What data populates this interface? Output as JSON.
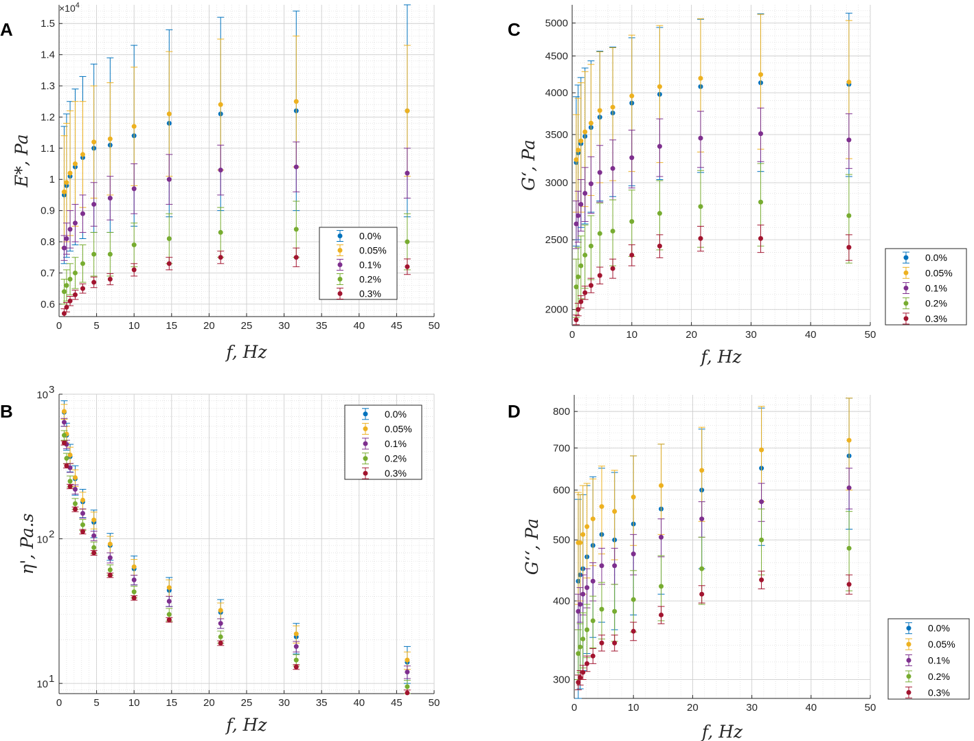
{
  "figure": {
    "series_names": [
      "0.0%",
      "0.05%",
      "0.1%",
      "0.2%",
      "0.3%"
    ],
    "series_colors": [
      "#0072BD",
      "#EDB120",
      "#7E2F8E",
      "#77AC30",
      "#A2142F"
    ]
  },
  "chart_data": [
    {
      "id": "A",
      "panel_label": "A",
      "type": "scatter",
      "yscale": "linear",
      "xlabel": "f, Hz",
      "ylabel": "E*, Pa",
      "exponent_label": "×10^4",
      "xlim": [
        0,
        50
      ],
      "ylim": [
        0.56,
        1.56
      ],
      "xticks": [
        0,
        5,
        10,
        15,
        20,
        25,
        30,
        35,
        40,
        45,
        50
      ],
      "xtick_labels": [
        "0",
        "5",
        "10",
        "15",
        "20",
        "25",
        "30",
        "35",
        "40",
        "45",
        "50"
      ],
      "yticks": [
        0.6,
        0.7,
        0.8,
        0.9,
        1.0,
        1.1,
        1.2,
        1.3,
        1.4,
        1.5
      ],
      "ytick_labels": [
        "0.6",
        "0.7",
        "0.8",
        "0.9",
        "1",
        "1.1",
        "1.2",
        "1.3",
        "1.4",
        "1.5"
      ],
      "legend_position": "lower-right",
      "x": [
        0.68,
        1.0,
        1.47,
        2.15,
        3.16,
        4.64,
        6.81,
        10.0,
        14.68,
        21.54,
        31.62,
        46.42
      ],
      "series": [
        {
          "name": "0.0%",
          "values": [
            0.95,
            0.98,
            1.01,
            1.04,
            1.07,
            1.1,
            1.11,
            1.14,
            1.18,
            1.21,
            1.22,
            1.22
          ],
          "err": [
            0.22,
            0.23,
            0.24,
            0.25,
            0.26,
            0.27,
            0.28,
            0.29,
            0.3,
            0.31,
            0.32,
            0.34
          ]
        },
        {
          "name": "0.05%",
          "values": [
            0.96,
            0.99,
            1.02,
            1.05,
            1.08,
            1.12,
            1.13,
            1.17,
            1.21,
            1.24,
            1.25,
            1.22
          ],
          "err": [
            0.18,
            0.19,
            0.2,
            0.2,
            0.17,
            0.18,
            0.18,
            0.19,
            0.2,
            0.21,
            0.21,
            0.21
          ]
        },
        {
          "name": "0.1%",
          "values": [
            0.78,
            0.81,
            0.84,
            0.86,
            0.89,
            0.92,
            0.94,
            0.97,
            1.0,
            1.03,
            1.04,
            1.02
          ],
          "err": [
            0.04,
            0.05,
            0.06,
            0.06,
            0.06,
            0.07,
            0.07,
            0.08,
            0.08,
            0.08,
            0.08,
            0.08
          ]
        },
        {
          "name": "0.2%",
          "values": [
            0.64,
            0.66,
            0.68,
            0.7,
            0.73,
            0.76,
            0.76,
            0.79,
            0.81,
            0.83,
            0.84,
            0.8
          ],
          "err": [
            0.04,
            0.05,
            0.05,
            0.05,
            0.06,
            0.07,
            0.07,
            0.07,
            0.08,
            0.08,
            0.09,
            0.09
          ]
        },
        {
          "name": "0.3%",
          "values": [
            0.57,
            0.59,
            0.61,
            0.63,
            0.65,
            0.67,
            0.68,
            0.71,
            0.73,
            0.75,
            0.75,
            0.72
          ],
          "err": [
            0.015,
            0.015,
            0.015,
            0.015,
            0.015,
            0.017,
            0.018,
            0.02,
            0.02,
            0.02,
            0.03,
            0.025
          ]
        }
      ]
    },
    {
      "id": "B",
      "panel_label": "B",
      "type": "scatter",
      "yscale": "log",
      "xlabel": "f, Hz",
      "ylabel": "η', Pa.s",
      "xlim": [
        0,
        50
      ],
      "ylim": [
        8.5,
        1000
      ],
      "xticks": [
        0,
        5,
        10,
        15,
        20,
        25,
        30,
        35,
        40,
        45,
        50
      ],
      "xtick_labels": [
        "0",
        "5",
        "10",
        "15",
        "20",
        "25",
        "30",
        "35",
        "40",
        "45",
        "50"
      ],
      "yticks": [
        10,
        100,
        1000
      ],
      "ytick_labels": [
        "10",
        "10",
        "10"
      ],
      "ytick_exponents": [
        "1",
        "2",
        "3"
      ],
      "legend_position": "top-right",
      "x": [
        0.68,
        1.0,
        1.47,
        2.15,
        3.16,
        4.64,
        6.81,
        10.0,
        14.68,
        21.54,
        31.62,
        46.42
      ],
      "series": [
        {
          "name": "0.0%",
          "values": [
            750,
            520,
            370,
            260,
            180,
            130,
            90,
            62,
            44,
            31,
            21,
            14
          ],
          "err": [
            150,
            110,
            80,
            60,
            40,
            28,
            19,
            14,
            10,
            7,
            5,
            4
          ]
        },
        {
          "name": "0.05%",
          "values": [
            760,
            530,
            380,
            265,
            185,
            135,
            92,
            64,
            46,
            32,
            22,
            14.5
          ],
          "err": [
            90,
            70,
            50,
            35,
            25,
            18,
            12,
            8,
            6,
            4,
            3,
            2
          ]
        },
        {
          "name": "0.1%",
          "values": [
            640,
            450,
            310,
            220,
            150,
            105,
            74,
            52,
            37,
            26,
            18,
            12
          ],
          "err": [
            40,
            30,
            22,
            16,
            11,
            8,
            6,
            4,
            3,
            2,
            1.5,
            1.2
          ]
        },
        {
          "name": "0.2%",
          "values": [
            520,
            360,
            250,
            175,
            125,
            87,
            61,
            43,
            30,
            21,
            14.5,
            9.5
          ],
          "err": [
            40,
            30,
            22,
            15,
            11,
            8,
            5,
            4,
            3,
            2,
            1.3,
            1
          ]
        },
        {
          "name": "0.3%",
          "values": [
            460,
            320,
            230,
            160,
            112,
            80,
            56,
            39,
            27.5,
            19,
            13,
            8.6
          ],
          "err": [
            15,
            11,
            8,
            6,
            4,
            3,
            2,
            1.4,
            1,
            0.7,
            0.5,
            0.4
          ]
        }
      ]
    },
    {
      "id": "C",
      "panel_label": "C",
      "type": "scatter",
      "yscale": "log",
      "xlabel": "f, Hz",
      "ylabel": "G‘, Pa",
      "xlim": [
        0,
        50
      ],
      "ylim": [
        1900,
        5300
      ],
      "xticks": [
        0,
        10,
        20,
        30,
        40,
        50
      ],
      "xtick_labels": [
        "0",
        "10",
        "20",
        "30",
        "40",
        "50"
      ],
      "yticks": [
        2000,
        2500,
        3000,
        3500,
        4000,
        4500,
        5000
      ],
      "ytick_labels": [
        "2000",
        "2500",
        "3000",
        "3500",
        "4000",
        "4500",
        "5000"
      ],
      "legend_position": "right-outside",
      "x": [
        0.68,
        1.0,
        1.47,
        2.15,
        3.16,
        4.64,
        6.81,
        10.0,
        14.68,
        21.54,
        31.62,
        46.42
      ],
      "series": [
        {
          "name": "0.0%",
          "values": [
            3200,
            3300,
            3400,
            3480,
            3580,
            3700,
            3750,
            3870,
            3980,
            4080,
            4130,
            4110
          ],
          "err": [
            750,
            800,
            800,
            850,
            850,
            870,
            880,
            900,
            950,
            980,
            1020,
            1050
          ]
        },
        {
          "name": "0.05%",
          "values": [
            3230,
            3330,
            3430,
            3530,
            3630,
            3780,
            3820,
            3960,
            4080,
            4190,
            4240,
            4140
          ],
          "err": [
            500,
            600,
            700,
            750,
            750,
            780,
            800,
            850,
            880,
            880,
            900,
            900
          ]
        },
        {
          "name": "0.1%",
          "values": [
            2630,
            2700,
            2800,
            2900,
            2990,
            3100,
            3140,
            3250,
            3370,
            3460,
            3510,
            3440
          ],
          "err": [
            200,
            220,
            230,
            250,
            270,
            280,
            300,
            300,
            310,
            310,
            300,
            300
          ]
        },
        {
          "name": "0.2%",
          "values": [
            2150,
            2220,
            2300,
            2380,
            2450,
            2550,
            2570,
            2650,
            2720,
            2780,
            2820,
            2700
          ],
          "err": [
            200,
            220,
            230,
            240,
            250,
            260,
            270,
            280,
            300,
            340,
            370,
            380
          ]
        },
        {
          "name": "0.3%",
          "values": [
            1935,
            2000,
            2050,
            2110,
            2160,
            2230,
            2280,
            2380,
            2450,
            2510,
            2510,
            2440
          ],
          "err": [
            30,
            40,
            40,
            45,
            50,
            60,
            70,
            80,
            90,
            100,
            110,
            100
          ]
        }
      ]
    },
    {
      "id": "D",
      "panel_label": "D",
      "type": "scatter",
      "yscale": "log",
      "xlabel": "f, Hz",
      "ylabel": "G‘‘, Pa",
      "xlim": [
        0,
        50
      ],
      "ylim": [
        280,
        850
      ],
      "xticks": [
        0,
        10,
        20,
        30,
        40,
        50
      ],
      "xtick_labels": [
        "0",
        "10",
        "20",
        "30",
        "40",
        "50"
      ],
      "yticks": [
        300,
        400,
        500,
        600,
        700,
        800
      ],
      "ytick_labels": [
        "300",
        "400",
        "500",
        "600",
        "700",
        "800"
      ],
      "legend_position": "right-outside",
      "x": [
        0.68,
        1.0,
        1.47,
        2.15,
        3.16,
        4.64,
        6.81,
        10.0,
        14.68,
        21.54,
        31.62,
        46.42
      ],
      "series": [
        {
          "name": "0.0%",
          "values": [
            430,
            440,
            450,
            470,
            490,
            510,
            500,
            530,
            560,
            600,
            650,
            680
          ],
          "err": [
            150,
            150,
            140,
            140,
            140,
            140,
            140,
            150,
            150,
            150,
            160,
            160
          ]
        },
        {
          "name": "0.05%",
          "values": [
            495,
            495,
            510,
            525,
            540,
            565,
            555,
            585,
            610,
            645,
            695,
            720
          ],
          "err": [
            100,
            95,
            100,
            90,
            85,
            90,
            90,
            95,
            100,
            110,
            120,
            120
          ]
        },
        {
          "name": "0.1%",
          "values": [
            385,
            395,
            410,
            420,
            430,
            455,
            455,
            475,
            505,
            540,
            575,
            605
          ],
          "err": [
            25,
            25,
            30,
            30,
            30,
            30,
            30,
            35,
            35,
            35,
            40,
            45
          ]
        },
        {
          "name": "0.2%",
          "values": [
            330,
            338,
            348,
            360,
            372,
            388,
            385,
            402,
            422,
            450,
            500,
            485
          ],
          "err": [
            30,
            30,
            35,
            35,
            35,
            40,
            40,
            45,
            50,
            55,
            60,
            70
          ]
        },
        {
          "name": "0.3%",
          "values": [
            297,
            302,
            308,
            318,
            327,
            343,
            343,
            358,
            380,
            410,
            432,
            425
          ],
          "err": [
            8,
            8,
            8,
            9,
            9,
            10,
            10,
            12,
            12,
            13,
            14,
            15
          ]
        }
      ]
    }
  ]
}
